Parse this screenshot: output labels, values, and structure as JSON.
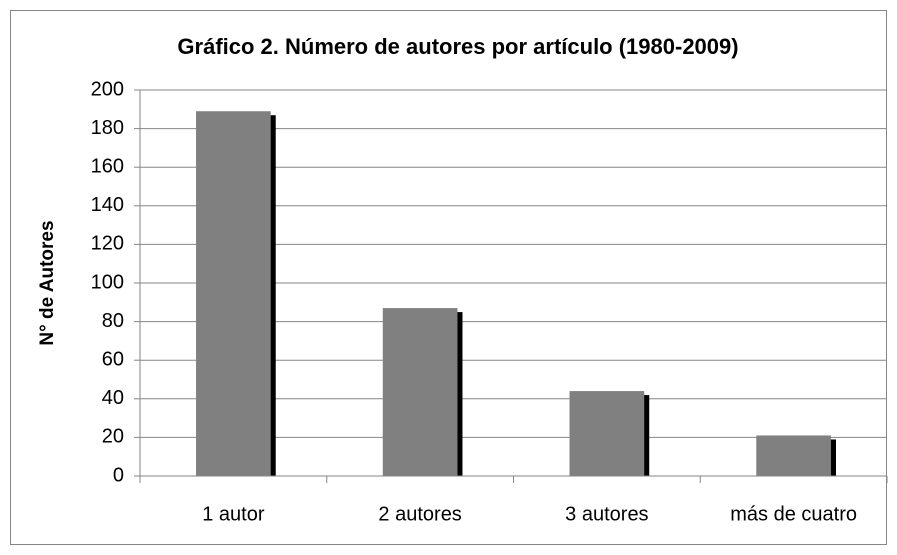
{
  "chart_data": {
    "type": "bar",
    "title": "Gráfico 2. Número de autores por artículo  (1980-2009)",
    "y_label": "N° de Autores",
    "categories": [
      "1 autor",
      "2 autores",
      "3 autores",
      "más de cuatro"
    ],
    "values": [
      189,
      87,
      44,
      21
    ],
    "color": "#808080",
    "ylim": [
      0,
      200
    ],
    "yticks": [
      0,
      20,
      40,
      60,
      80,
      100,
      120,
      140,
      160,
      180,
      200
    ],
    "grid": true
  }
}
